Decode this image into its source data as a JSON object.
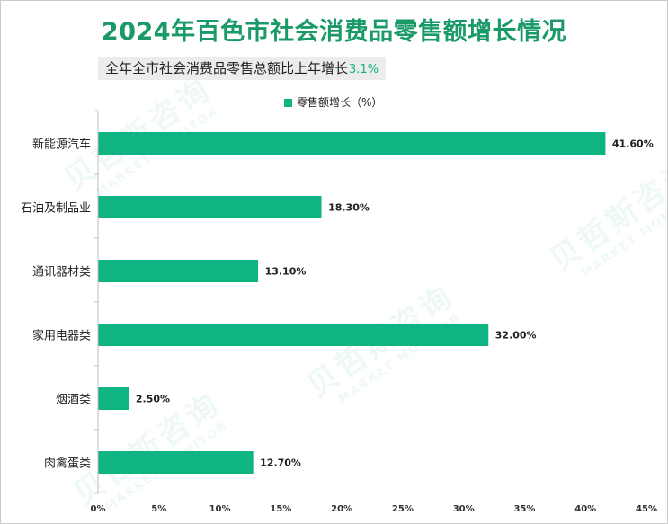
{
  "header": {
    "title": "2024年百色市社会消费品零售额增长情况",
    "subtitle": "全年全市社会消费品零售总额比上年增长",
    "subtitle_value": "3.1%"
  },
  "watermark": {
    "brand": "贝哲斯咨询",
    "brand_en": "MARKET MONITOR"
  },
  "colors": {
    "bar": "#0fb482",
    "title": "#1a9a68"
  },
  "chart_data": {
    "type": "bar",
    "orientation": "horizontal",
    "title": "2024年百色市社会消费品零售额增长情况",
    "legend": [
      "零售额增长（%）"
    ],
    "legend_position": "top-center",
    "categories": [
      "新能源汽车",
      "石油及制品业",
      "通讯器材类",
      "家用电器类",
      "烟酒类",
      "肉禽蛋类"
    ],
    "values": [
      41.6,
      18.3,
      13.1,
      32.0,
      2.5,
      12.7
    ],
    "data_labels": [
      "41.60%",
      "18.30%",
      "13.10%",
      "32.00%",
      "2.50%",
      "12.70%"
    ],
    "xlim": [
      0,
      45
    ],
    "xticks": [
      0,
      5,
      10,
      15,
      20,
      25,
      30,
      35,
      40,
      45
    ],
    "xtick_labels": [
      "0%",
      "5%",
      "10%",
      "15%",
      "20%",
      "25%",
      "30%",
      "35%",
      "40%",
      "45%"
    ],
    "grid": false,
    "xlabel": "",
    "ylabel": ""
  }
}
